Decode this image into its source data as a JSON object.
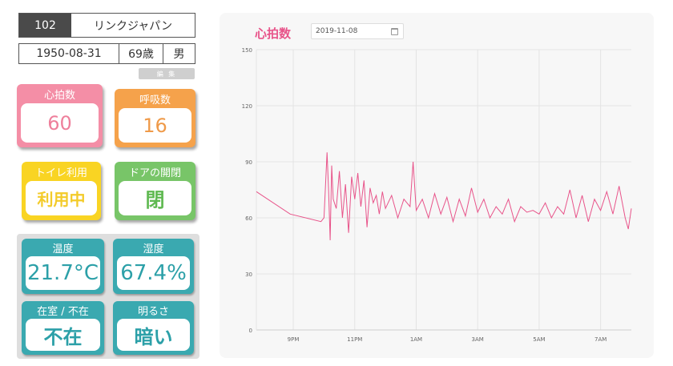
{
  "patient": {
    "id": "102",
    "name": "リンクジャパン",
    "dob": "1950-08-31",
    "age": "69歳",
    "sex": "男",
    "edit_label": "編 集"
  },
  "tiles": {
    "heart_rate": {
      "label": "心拍数",
      "value": "60",
      "color": "#f48ea6"
    },
    "respiration": {
      "label": "呼吸数",
      "value": "16",
      "color": "#f5a24b"
    },
    "toilet": {
      "label": "トイレ利用",
      "value": "利用中",
      "color": "#f9d423"
    },
    "door": {
      "label": "ドアの開閉",
      "value": "閉",
      "color": "#78c568"
    },
    "temperature": {
      "label": "温度",
      "value": "21.7°C",
      "color": "#3aa9b0"
    },
    "humidity": {
      "label": "湿度",
      "value": "67.4%",
      "color": "#3aa9b0"
    },
    "presence": {
      "label": "在室 / 不在",
      "value": "不在",
      "color": "#3aa9b0"
    },
    "brightness": {
      "label": "明るさ",
      "value": "暗い",
      "color": "#3aa9b0"
    }
  },
  "chart_header": {
    "title": "心拍数",
    "date": "2019-11-08",
    "date_icon": "calendar-icon"
  },
  "chart_data": {
    "type": "line",
    "title": "心拍数",
    "xlabel": "",
    "ylabel": "",
    "ylim": [
      0,
      150
    ],
    "yticks": [
      0,
      30,
      60,
      90,
      120,
      150
    ],
    "xticks": [
      "9PM",
      "11PM",
      "1AM",
      "3AM",
      "5AM",
      "7AM"
    ],
    "xtick_hours": [
      21,
      23,
      25,
      27,
      29,
      31
    ],
    "xlim_hours": [
      19.8,
      32.0
    ],
    "grid": true,
    "line_color": "#e8548a",
    "series": [
      {
        "x_hours": [
          19.8,
          20.9,
          21.9,
          22.0,
          22.1,
          22.15,
          22.2,
          22.25,
          22.3,
          22.4,
          22.5,
          22.6,
          22.7,
          22.8,
          22.9,
          23.0,
          23.1,
          23.2,
          23.3,
          23.4,
          23.5,
          23.6,
          23.7,
          23.8,
          23.9,
          24.0,
          24.2,
          24.4,
          24.6,
          24.8,
          24.9,
          25.0,
          25.2,
          25.4,
          25.6,
          25.8,
          26.0,
          26.2,
          26.4,
          26.6,
          26.8,
          27.0,
          27.2,
          27.4,
          27.6,
          27.8,
          28.0,
          28.2,
          28.4,
          28.6,
          28.8,
          29.0,
          29.2,
          29.4,
          29.6,
          29.8,
          30.0,
          30.2,
          30.4,
          30.6,
          30.8,
          31.0,
          31.2,
          31.4,
          31.6,
          31.8,
          31.9,
          32.0
        ],
        "y": [
          74,
          62,
          58,
          60,
          95,
          75,
          48,
          88,
          70,
          65,
          85,
          60,
          78,
          52,
          82,
          70,
          84,
          66,
          80,
          55,
          76,
          68,
          72,
          62,
          74,
          65,
          72,
          60,
          70,
          66,
          90,
          64,
          70,
          60,
          73,
          62,
          71,
          58,
          70,
          61,
          76,
          63,
          70,
          60,
          66,
          62,
          70,
          58,
          66,
          63,
          64,
          62,
          68,
          60,
          66,
          62,
          75,
          60,
          72,
          58,
          70,
          64,
          74,
          62,
          77,
          60,
          54,
          65
        ]
      }
    ]
  }
}
